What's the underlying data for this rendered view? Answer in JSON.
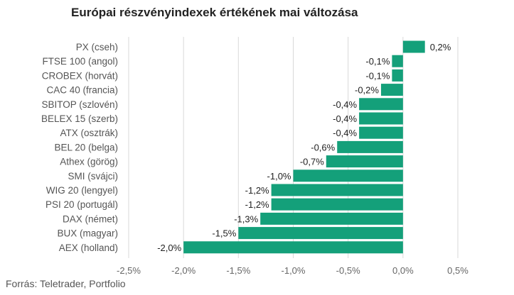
{
  "title": "Európai részvényindexek értékének mai változása",
  "source": "Forrás: Teletrader, Portfolio",
  "chart_data": {
    "type": "bar",
    "orientation": "horizontal",
    "title": "Európai részvényindexek értékének mai változása",
    "categories": [
      "PX (cseh)",
      "FTSE 100 (angol)",
      "CROBEX (horvát)",
      "CAC 40 (francia)",
      "SBITOP (szlovén)",
      "BELEX 15 (szerb)",
      "ATX (osztrák)",
      "BEL 20 (belga)",
      "Athex (görög)",
      "SMI (svájci)",
      "WIG 20 (lengyel)",
      "PSI 20 (portugál)",
      "DAX (német)",
      "BUX (magyar)",
      "AEX (holland)"
    ],
    "values": [
      0.2,
      -0.1,
      -0.1,
      -0.2,
      -0.4,
      -0.4,
      -0.4,
      -0.6,
      -0.7,
      -1.0,
      -1.2,
      -1.2,
      -1.3,
      -1.5,
      -2.0
    ],
    "value_labels": [
      "0,2%",
      "-0,1%",
      "-0,1%",
      "-0,2%",
      "-0,4%",
      "-0,4%",
      "-0,4%",
      "-0,6%",
      "-0,7%",
      "-1,0%",
      "-1,2%",
      "-1,2%",
      "-1,3%",
      "-1,5%",
      "-2,0%"
    ],
    "xlim": [
      -2.5,
      0.5
    ],
    "ticks": [
      -2.5,
      -2.0,
      -1.5,
      -1.0,
      -0.5,
      0.0,
      0.5
    ],
    "tick_labels": [
      "-2,5%",
      "-2,0%",
      "-1,5%",
      "-1,0%",
      "-0,5%",
      "0,0%",
      "0,5%"
    ],
    "grid": true,
    "bar_color": "#14a07a",
    "grid_color": "#d9d9d9"
  }
}
